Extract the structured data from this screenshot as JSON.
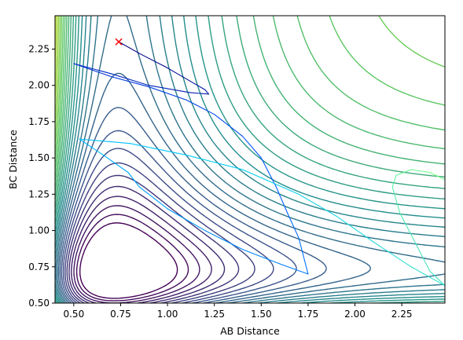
{
  "chart_data": {
    "type": "contour",
    "xlabel": "AB Distance",
    "ylabel": "BC Distance",
    "xlim": [
      0.4,
      2.48
    ],
    "ylim": [
      0.5,
      2.48
    ],
    "xticks": [
      0.5,
      0.75,
      1.0,
      1.25,
      1.5,
      1.75,
      2.0,
      2.25
    ],
    "xtick_labels": [
      "0.50",
      "0.75",
      "1.00",
      "1.25",
      "1.50",
      "1.75",
      "2.00",
      "2.25"
    ],
    "yticks": [
      0.5,
      0.75,
      1.0,
      1.25,
      1.5,
      1.75,
      2.0,
      2.25
    ],
    "ytick_labels": [
      "0.50",
      "0.75",
      "1.00",
      "1.25",
      "1.50",
      "1.75",
      "2.00",
      "2.25"
    ],
    "colormap": [
      "#440154",
      "#3b528b",
      "#21918c",
      "#5ec962",
      "#fde725"
    ],
    "start_marker": {
      "x": 0.74,
      "y": 2.3,
      "symbol": "x",
      "color": "#ff0000"
    },
    "trajectory": [
      [
        0.74,
        2.3
      ],
      [
        0.85,
        2.22
      ],
      [
        1.0,
        2.12
      ],
      [
        1.12,
        2.03
      ],
      [
        1.2,
        1.97
      ],
      [
        1.22,
        1.94
      ],
      [
        1.12,
        1.95
      ],
      [
        0.9,
        2.0
      ],
      [
        0.7,
        2.08
      ],
      [
        0.5,
        2.15
      ],
      [
        0.7,
        2.06
      ],
      [
        0.9,
        1.99
      ],
      [
        1.1,
        1.9
      ],
      [
        1.25,
        1.8
      ],
      [
        1.4,
        1.65
      ],
      [
        1.5,
        1.5
      ],
      [
        1.58,
        1.3
      ],
      [
        1.64,
        1.12
      ],
      [
        1.7,
        0.95
      ],
      [
        1.75,
        0.7
      ],
      [
        1.6,
        0.77
      ],
      [
        1.4,
        0.87
      ],
      [
        1.2,
        1.0
      ],
      [
        1.0,
        1.15
      ],
      [
        0.85,
        1.3
      ],
      [
        0.79,
        1.4
      ],
      [
        0.68,
        1.5
      ],
      [
        0.53,
        1.63
      ],
      [
        0.8,
        1.6
      ],
      [
        1.1,
        1.52
      ],
      [
        1.4,
        1.42
      ],
      [
        1.7,
        1.25
      ],
      [
        1.9,
        1.1
      ],
      [
        2.1,
        0.92
      ],
      [
        2.3,
        0.75
      ],
      [
        2.48,
        0.62
      ],
      [
        2.4,
        0.72
      ],
      [
        2.32,
        0.92
      ],
      [
        2.24,
        1.12
      ],
      [
        2.2,
        1.3
      ],
      [
        2.22,
        1.38
      ],
      [
        2.3,
        1.42
      ],
      [
        2.4,
        1.4
      ],
      [
        2.48,
        1.35
      ]
    ]
  }
}
